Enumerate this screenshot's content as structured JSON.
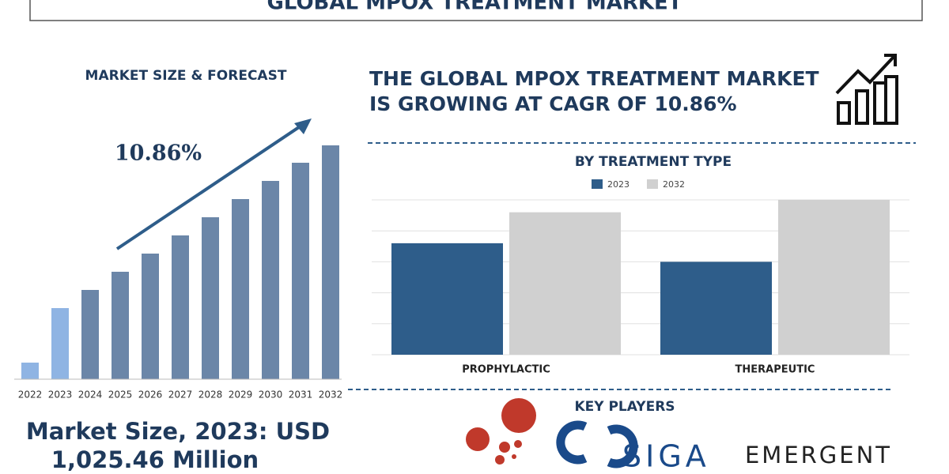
{
  "title": "GLOBAL MPOX TREATMENT MARKET",
  "headline": [
    "THE GLOBAL MPOX TREATMENT MARKET",
    "IS GROWING AT CAGR OF 10.86%"
  ],
  "market_size": [
    "Market Size, 2023: USD",
    "1,025.46 Million"
  ],
  "key_players": {
    "title": "KEY PLAYERS",
    "logos": [
      "SIGA",
      "EMERGENT"
    ]
  },
  "chart_data": [
    {
      "type": "bar",
      "title": "MARKET SIZE & FORECAST",
      "annotation": "10.86%",
      "categories": [
        "2022",
        "2023",
        "2024",
        "2025",
        "2026",
        "2027",
        "2028",
        "2029",
        "2030",
        "2031",
        "2032"
      ],
      "values": [
        21,
        90,
        113,
        136,
        159,
        182,
        205,
        228,
        251,
        274,
        296
      ],
      "colors": [
        "#8fb4e3",
        "#8fb4e3",
        "#6b86a8",
        "#6b86a8",
        "#6b86a8",
        "#6b86a8",
        "#6b86a8",
        "#6b86a8",
        "#6b86a8",
        "#6b86a8",
        "#6b86a8"
      ],
      "ylim": [
        0,
        300
      ],
      "grid": false
    },
    {
      "type": "grouped-bar",
      "title": "BY TREATMENT TYPE",
      "categories": [
        "PROPHYLACTIC",
        "THERAPEUTIC"
      ],
      "series": [
        {
          "name": "2023",
          "color": "#2e5d8a",
          "values": [
            3.6,
            3.0
          ]
        },
        {
          "name": "2032",
          "color": "#d0d0d0",
          "values": [
            4.6,
            5.0
          ]
        }
      ],
      "ylim": [
        0,
        5
      ],
      "yticks": [
        0,
        1,
        2,
        3,
        4,
        5
      ],
      "grid": true
    }
  ]
}
